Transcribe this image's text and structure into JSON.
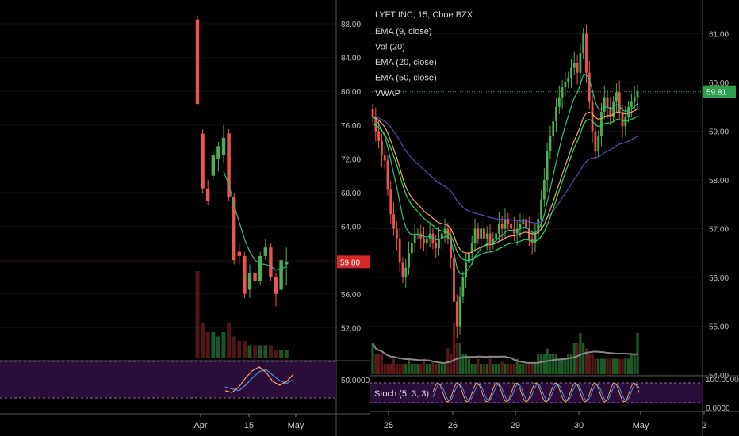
{
  "chart_data": [
    {
      "type": "candlestick",
      "timeframe": "daily",
      "x_labels": [
        "Apr",
        "15",
        "May"
      ],
      "y_ticks": [
        "88.00",
        "84.00",
        "80.00",
        "76.00",
        "72.00",
        "68.00",
        "64.00",
        "60.00",
        "56.00",
        "52.00"
      ],
      "ylim": [
        48,
        90
      ],
      "last_price_label": "59.80",
      "last_price": 59.8,
      "candles": [
        {
          "o": 88.5,
          "h": 89.0,
          "l": 78.5,
          "c": 78.5
        },
        {
          "o": 75.0,
          "h": 75.5,
          "l": 68.0,
          "c": 68.5
        },
        {
          "o": 68.5,
          "h": 69.5,
          "l": 66.5,
          "c": 67.0
        },
        {
          "o": 70.0,
          "h": 73.0,
          "l": 69.5,
          "c": 72.5
        },
        {
          "o": 72.0,
          "h": 74.0,
          "l": 70.5,
          "c": 73.5
        },
        {
          "o": 72.5,
          "h": 76.0,
          "l": 71.5,
          "c": 74.5
        },
        {
          "o": 75.0,
          "h": 75.5,
          "l": 67.0,
          "c": 67.5
        },
        {
          "o": 67.5,
          "h": 68.0,
          "l": 59.5,
          "c": 60.0
        },
        {
          "o": 61.0,
          "h": 62.0,
          "l": 59.5,
          "c": 60.5
        },
        {
          "o": 60.5,
          "h": 61.0,
          "l": 55.5,
          "c": 56.0
        },
        {
          "o": 56.5,
          "h": 59.5,
          "l": 55.5,
          "c": 58.5
        },
        {
          "o": 58.5,
          "h": 59.5,
          "l": 56.5,
          "c": 57.5
        },
        {
          "o": 57.5,
          "h": 61.0,
          "l": 57.0,
          "c": 60.5
        },
        {
          "o": 60.5,
          "h": 62.5,
          "l": 60.0,
          "c": 61.5
        },
        {
          "o": 61.5,
          "h": 62.0,
          "l": 57.5,
          "c": 58.0
        },
        {
          "o": 58.0,
          "h": 58.5,
          "l": 54.5,
          "c": 56.0
        },
        {
          "o": 56.5,
          "h": 60.5,
          "l": 55.5,
          "c": 60.0
        },
        {
          "o": 59.5,
          "h": 61.5,
          "l": 57.0,
          "c": 59.8
        }
      ],
      "volume": [
        10,
        4,
        3,
        3,
        2.5,
        3,
        4,
        2.5,
        2,
        2,
        1.5,
        1.5,
        1.5,
        1.5,
        1.5,
        1,
        1,
        1
      ],
      "ema_close": [
        null,
        null,
        null,
        null,
        null,
        70.5,
        69.0,
        66.5,
        64.5,
        62.5,
        61.0,
        60.0,
        59.6,
        59.5,
        59.3,
        58.8,
        59.0,
        59.2
      ],
      "stoch": {
        "ylabel": "50.0000",
        "ylim": [
          0,
          100
        ],
        "level": 50,
        "k": [
          20,
          15,
          30,
          55,
          75,
          85,
          70,
          45,
          35,
          45,
          65
        ],
        "d": [
          30,
          25,
          20,
          35,
          55,
          72,
          78,
          62,
          48,
          40,
          50
        ]
      }
    },
    {
      "type": "candlestick",
      "title": "LYFT INC, 15, Cboe BZX",
      "legend": [
        "EMA (9, close)",
        "Vol (20)",
        "EMA (20, close)",
        "EMA (50, close)",
        "VWAP"
      ],
      "x_labels": [
        "25",
        "26",
        "29",
        "30",
        "May",
        "2"
      ],
      "y_ticks": [
        "61.00",
        "60.00",
        "59.00",
        "58.00",
        "57.00",
        "56.00",
        "55.00",
        "54.00"
      ],
      "ylim": [
        54.0,
        61.6
      ],
      "last_price_label": "59.81",
      "last_price": 59.81,
      "price_path": [
        59.3,
        59.0,
        58.8,
        58.5,
        58.4,
        57.8,
        57.3,
        57.0,
        56.8,
        56.3,
        56.0,
        56.2,
        56.5,
        56.7,
        56.9,
        56.9,
        56.8,
        56.7,
        56.8,
        56.9,
        56.7,
        56.6,
        56.8,
        56.9,
        57.0,
        56.8,
        56.4,
        55.5,
        55.0,
        55.6,
        56.0,
        56.3,
        56.5,
        56.7,
        57.0,
        56.8,
        57.0,
        56.8,
        56.9,
        56.7,
        56.8,
        56.9,
        57.1,
        57.0,
        57.2,
        57.1,
        57.0,
        56.9,
        57.0,
        57.1,
        57.2,
        57.0,
        56.8,
        56.7,
        56.9,
        57.2,
        57.6,
        58.0,
        58.6,
        58.9,
        59.2,
        59.5,
        59.7,
        59.9,
        60.0,
        60.1,
        60.3,
        60.4,
        60.2,
        60.6,
        61.0,
        60.2,
        59.6,
        59.0,
        58.6,
        58.9,
        59.4,
        59.7,
        59.5,
        59.3,
        59.6,
        59.8,
        59.4,
        59.1,
        59.3,
        59.5,
        59.6,
        59.7,
        59.81
      ],
      "volume_profile": [
        3,
        2,
        2,
        2,
        1,
        1,
        1,
        1.5,
        1,
        1,
        1,
        1,
        1.5,
        1,
        1,
        1,
        1,
        1.5,
        1,
        1,
        1.2,
        1,
        1,
        1,
        1,
        2.5,
        2,
        5,
        3,
        3,
        2,
        2,
        1.5,
        1,
        1,
        1.5,
        1,
        1,
        1,
        1.5,
        1,
        1,
        1,
        1.2,
        1,
        1,
        1,
        1,
        1.5,
        1,
        1,
        1,
        1,
        1,
        1,
        2,
        2,
        2,
        2.5,
        2,
        2,
        2,
        1.5,
        1.5,
        1.5,
        2,
        2,
        3,
        3,
        4,
        3,
        2.5,
        2,
        2,
        1.5,
        1.5,
        1.5,
        1.5,
        1.5,
        1.5,
        1.5,
        1.5,
        1.5,
        1.5,
        1.5,
        1.5,
        2,
        2,
        4
      ],
      "stoch": {
        "label": "Stoch (5, 3, 3)",
        "y_ticks": [
          "100.0000",
          "0.0000"
        ],
        "ylim": [
          0,
          100
        ]
      }
    }
  ],
  "colors": {
    "up": "#26a69a",
    "down": "#ef5350",
    "bull_body": "#4caf50",
    "ema9": "#26c281",
    "ema20": "#f4a261",
    "ema50": "#5c4bb0",
    "vwap": "#22dd55",
    "vol_ma": "#888888",
    "stoch_k": "#f4a261",
    "stoch_d": "#4a90d9",
    "stoch_bg": "#2a0d3a",
    "price_line": "#ef5350",
    "price_label": "#d62828",
    "right_price_label": "#2e9e4f"
  }
}
